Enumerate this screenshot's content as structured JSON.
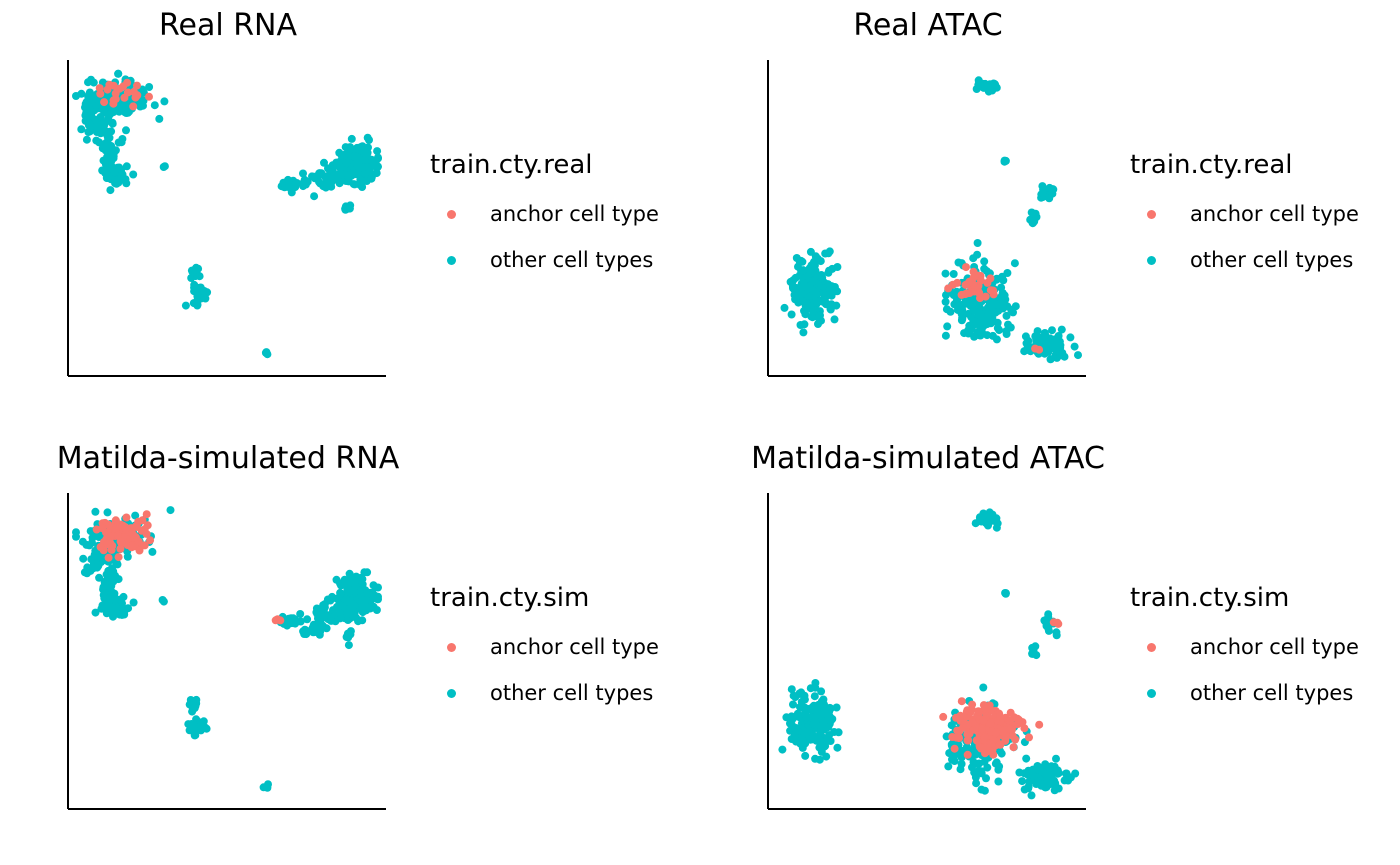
{
  "colors": {
    "anchor": "#F8766D",
    "other": "#00BFC4",
    "axis": "#000000"
  },
  "chart_data": [
    {
      "type": "scatter",
      "title": "Real RNA",
      "legend_title": "train.cty.real",
      "legend_placement": "right",
      "xlim": [
        0,
        100
      ],
      "ylim": [
        0,
        100
      ],
      "grid": false,
      "axis_ticks": false,
      "series": [
        {
          "name": "anchor cell type",
          "color": "#F8766D",
          "clusters": [
            {
              "x": 15,
              "y": 91,
              "sx": 3.5,
              "sy": 2.2,
              "n": 22
            }
          ]
        },
        {
          "name": "other cell types",
          "color": "#00BFC4",
          "clusters": [
            {
              "x": 14,
              "y": 90,
              "sx": 5.5,
              "sy": 3.0,
              "n": 120
            },
            {
              "x": 8,
              "y": 81,
              "sx": 3.0,
              "sy": 3.0,
              "n": 55
            },
            {
              "x": 11,
              "y": 71,
              "sx": 1.2,
              "sy": 3.5,
              "n": 40
            },
            {
              "x": 13,
              "y": 65,
              "sx": 2.0,
              "sy": 2.0,
              "n": 40
            },
            {
              "x": 29,
              "y": 67,
              "sx": 0.3,
              "sy": 0.3,
              "n": 2
            },
            {
              "x": 72,
              "y": 61,
              "sx": 2.2,
              "sy": 0.8,
              "n": 25
            },
            {
              "x": 84,
              "y": 63,
              "sx": 4.5,
              "sy": 2.0,
              "n": 45
            },
            {
              "x": 93,
              "y": 68,
              "sx": 3.5,
              "sy": 3.0,
              "n": 150
            },
            {
              "x": 90,
              "y": 54,
              "sx": 0.6,
              "sy": 1.2,
              "n": 6
            },
            {
              "x": 39,
              "y": 32,
              "sx": 1.0,
              "sy": 1.0,
              "n": 12
            },
            {
              "x": 40,
              "y": 25,
              "sx": 1.5,
              "sy": 2.0,
              "n": 25
            },
            {
              "x": 63,
              "y": 5,
              "sx": 0.4,
              "sy": 0.4,
              "n": 3
            }
          ]
        }
      ]
    },
    {
      "type": "scatter",
      "title": "Real ATAC",
      "legend_title": "train.cty.real",
      "legend_placement": "right",
      "xlim": [
        0,
        100
      ],
      "ylim": [
        0,
        100
      ],
      "grid": false,
      "axis_ticks": false,
      "series": [
        {
          "name": "anchor cell type",
          "color": "#F8766D",
          "clusters": [
            {
              "x": 67,
              "y": 27,
              "sx": 4.0,
              "sy": 2.5,
              "n": 28
            },
            {
              "x": 86,
              "y": 6,
              "sx": 0.5,
              "sy": 0.5,
              "n": 2
            }
          ]
        },
        {
          "name": "other cell types",
          "color": "#00BFC4",
          "clusters": [
            {
              "x": 70,
              "y": 94,
              "sx": 1.8,
              "sy": 1.2,
              "n": 30
            },
            {
              "x": 76,
              "y": 69,
              "sx": 0.3,
              "sy": 0.3,
              "n": 3
            },
            {
              "x": 90,
              "y": 59,
              "sx": 1.8,
              "sy": 1.5,
              "n": 15
            },
            {
              "x": 85,
              "y": 50,
              "sx": 0.6,
              "sy": 1.2,
              "n": 8
            },
            {
              "x": 12,
              "y": 26,
              "sx": 3.8,
              "sy": 5.0,
              "n": 180
            },
            {
              "x": 8,
              "y": 36,
              "sx": 0.4,
              "sy": 0.6,
              "n": 3
            },
            {
              "x": 68,
              "y": 22,
              "sx": 5.0,
              "sy": 6.0,
              "n": 220
            },
            {
              "x": 90,
              "y": 8,
              "sx": 4.0,
              "sy": 2.5,
              "n": 70
            }
          ]
        }
      ]
    },
    {
      "type": "scatter",
      "title": "Matilda-simulated RNA",
      "legend_title": "train.cty.sim",
      "legend_placement": "right",
      "xlim": [
        0,
        100
      ],
      "ylim": [
        0,
        100
      ],
      "grid": false,
      "axis_ticks": false,
      "series": [
        {
          "name": "anchor cell type",
          "color": "#F8766D",
          "clusters": [
            {
              "x": 16,
              "y": 89,
              "sx": 4.0,
              "sy": 3.0,
              "n": 90
            },
            {
              "x": 67,
              "y": 60,
              "sx": 0.6,
              "sy": 0.5,
              "n": 3
            }
          ]
        },
        {
          "name": "other cell types",
          "color": "#00BFC4",
          "clusters": [
            {
              "x": 15,
              "y": 89,
              "sx": 5.5,
              "sy": 3.5,
              "n": 80
            },
            {
              "x": 8,
              "y": 81,
              "sx": 3.0,
              "sy": 3.0,
              "n": 55
            },
            {
              "x": 11,
              "y": 71,
              "sx": 1.2,
              "sy": 3.5,
              "n": 40
            },
            {
              "x": 13,
              "y": 64,
              "sx": 2.0,
              "sy": 2.0,
              "n": 40
            },
            {
              "x": 29,
              "y": 67,
              "sx": 0.3,
              "sy": 0.3,
              "n": 2
            },
            {
              "x": 71,
              "y": 60,
              "sx": 2.2,
              "sy": 0.8,
              "n": 25
            },
            {
              "x": 80,
              "y": 57,
              "sx": 2.0,
              "sy": 1.0,
              "n": 20
            },
            {
              "x": 86,
              "y": 63,
              "sx": 4.0,
              "sy": 2.5,
              "n": 40
            },
            {
              "x": 93,
              "y": 68,
              "sx": 3.5,
              "sy": 3.0,
              "n": 150
            },
            {
              "x": 90,
              "y": 55,
              "sx": 0.6,
              "sy": 1.2,
              "n": 6
            },
            {
              "x": 39,
              "y": 32,
              "sx": 1.0,
              "sy": 1.0,
              "n": 12
            },
            {
              "x": 40,
              "y": 25,
              "sx": 1.5,
              "sy": 2.0,
              "n": 25
            },
            {
              "x": 63,
              "y": 5,
              "sx": 0.4,
              "sy": 0.4,
              "n": 3
            }
          ]
        }
      ]
    },
    {
      "type": "scatter",
      "title": "Matilda-simulated ATAC",
      "legend_title": "train.cty.sim",
      "legend_placement": "right",
      "xlim": [
        0,
        100
      ],
      "ylim": [
        0,
        100
      ],
      "grid": false,
      "axis_ticks": false,
      "series": [
        {
          "name": "anchor cell type",
          "color": "#F8766D",
          "clusters": [
            {
              "x": 70,
              "y": 24,
              "sx": 5.0,
              "sy": 3.5,
              "n": 200
            },
            {
              "x": 93,
              "y": 60,
              "sx": 0.6,
              "sy": 0.5,
              "n": 3
            }
          ]
        },
        {
          "name": "other cell types",
          "color": "#00BFC4",
          "clusters": [
            {
              "x": 70,
              "y": 94,
              "sx": 1.8,
              "sy": 1.2,
              "n": 30
            },
            {
              "x": 76,
              "y": 69,
              "sx": 0.3,
              "sy": 0.3,
              "n": 3
            },
            {
              "x": 91,
              "y": 59,
              "sx": 1.8,
              "sy": 1.5,
              "n": 15
            },
            {
              "x": 85,
              "y": 50,
              "sx": 0.6,
              "sy": 1.2,
              "n": 8
            },
            {
              "x": 12,
              "y": 26,
              "sx": 3.8,
              "sy": 5.0,
              "n": 180
            },
            {
              "x": 8,
              "y": 36,
              "sx": 0.4,
              "sy": 0.6,
              "n": 3
            },
            {
              "x": 68,
              "y": 20,
              "sx": 5.0,
              "sy": 6.0,
              "n": 150
            },
            {
              "x": 89,
              "y": 8,
              "sx": 4.0,
              "sy": 2.5,
              "n": 70
            }
          ]
        }
      ]
    }
  ]
}
